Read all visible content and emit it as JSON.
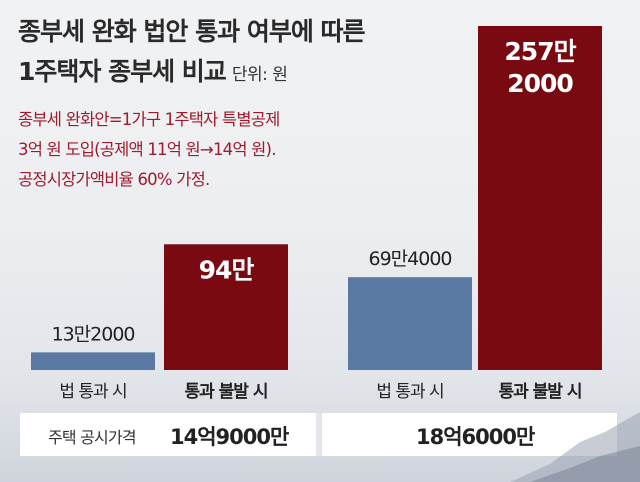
{
  "title_line1": "종부세 완화 법안 통과 여부에 따른",
  "title_line2": "1주택자 종부세 비교",
  "unit": "단위: 원",
  "notes": [
    "종부세 완화안=1가구 1주택자 특별공제",
    "3억 원 도입(공제액 11억 원→14억 원).",
    "공정시장가액비율 60% 가정."
  ],
  "colors": {
    "blue_bar": "#5a7aa3",
    "red_bar": "#7a0a12",
    "note_text": "#9e1b2b"
  },
  "chart_data": {
    "type": "bar",
    "categories": [
      "법 통과 시",
      "통과 불발 시"
    ],
    "groups": [
      {
        "price": "14억9000만",
        "values": [
          132000,
          940000
        ],
        "labels": [
          "13만2000",
          "94만"
        ]
      },
      {
        "price": "18억6000만",
        "values": [
          694000,
          2572000
        ],
        "labels": [
          "69만4000",
          "257만\n2000"
        ]
      }
    ],
    "series_colors": [
      "#5a7aa3",
      "#7a0a12"
    ],
    "title": "종부세 완화 법안 통과 여부에 따른 1주택자 종부세 비교",
    "ylim": [
      0,
      2572000
    ],
    "grid": false,
    "legend": "none"
  },
  "footer": {
    "label": "주택 공시가격"
  }
}
